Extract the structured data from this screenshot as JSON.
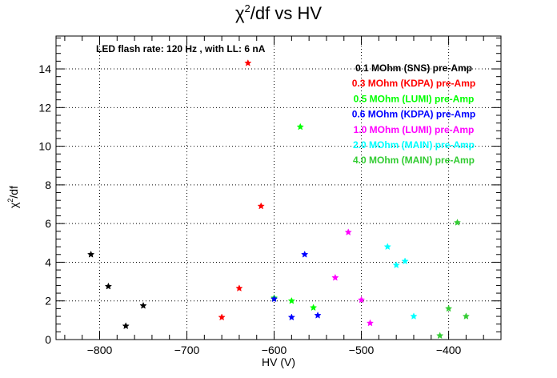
{
  "chart_data": {
    "type": "scatter",
    "title_main": "χ",
    "title_sup": "2",
    "title_rest": "/df vs HV",
    "xlabel": "HV (V)",
    "ylabel_main": "χ",
    "ylabel_sup": "2",
    "ylabel_rest": "/df",
    "annotation": "LED flash rate: 120 Hz , with LL: 6 nA",
    "xlim": [
      -850,
      -340
    ],
    "ylim": [
      0,
      15.7
    ],
    "x_ticks": [
      -800,
      -700,
      -600,
      -500,
      -400
    ],
    "x_tick_labels": [
      "−800",
      "−700",
      "−600",
      "−500",
      "−400"
    ],
    "y_ticks": [
      0,
      2,
      4,
      6,
      8,
      10,
      12,
      14
    ],
    "y_tick_labels": [
      "0",
      "2",
      "4",
      "6",
      "8",
      "10",
      "12",
      "14"
    ],
    "grid": true,
    "legend_position": "top-right",
    "series": [
      {
        "name": "0.1 MOhm (SNS) pre-Amp",
        "color": "#000000",
        "x": [
          -810,
          -790,
          -770,
          -750
        ],
        "y": [
          4.4,
          2.75,
          0.7,
          1.75
        ]
      },
      {
        "name": "0.3 MOhm (KDPA) pre-Amp",
        "color": "#ff0000",
        "x": [
          -660,
          -640,
          -630,
          -615
        ],
        "y": [
          1.15,
          2.65,
          14.3,
          6.9
        ]
      },
      {
        "name": "0.5 MOhm (LUMI) pre-Amp",
        "color": "#00ff00",
        "x": [
          -600,
          -580,
          -570,
          -555
        ],
        "y": [
          2.15,
          2.0,
          11.0,
          1.65
        ]
      },
      {
        "name": "0.6 MOhm (KDPA) pre-Amp",
        "color": "#0000ff",
        "x": [
          -600,
          -580,
          -565,
          -550
        ],
        "y": [
          2.1,
          1.15,
          4.4,
          1.25
        ]
      },
      {
        "name": "1.0 MOhm (LUMI) pre-Amp",
        "color": "#ff00ff",
        "x": [
          -530,
          -515,
          -500,
          -490
        ],
        "y": [
          3.2,
          5.55,
          2.05,
          0.85
        ]
      },
      {
        "name": "2.0 MOhm (MAIN) pre-Amp",
        "color": "#00ffff",
        "x": [
          -470,
          -460,
          -450,
          -440
        ],
        "y": [
          4.8,
          3.85,
          4.05,
          1.2
        ]
      },
      {
        "name": "4.0 MOhm (MAIN) pre-Amp",
        "color": "#33cc33",
        "x": [
          -410,
          -400,
          -390,
          -380
        ],
        "y": [
          0.2,
          1.6,
          6.05,
          1.2
        ]
      }
    ]
  }
}
